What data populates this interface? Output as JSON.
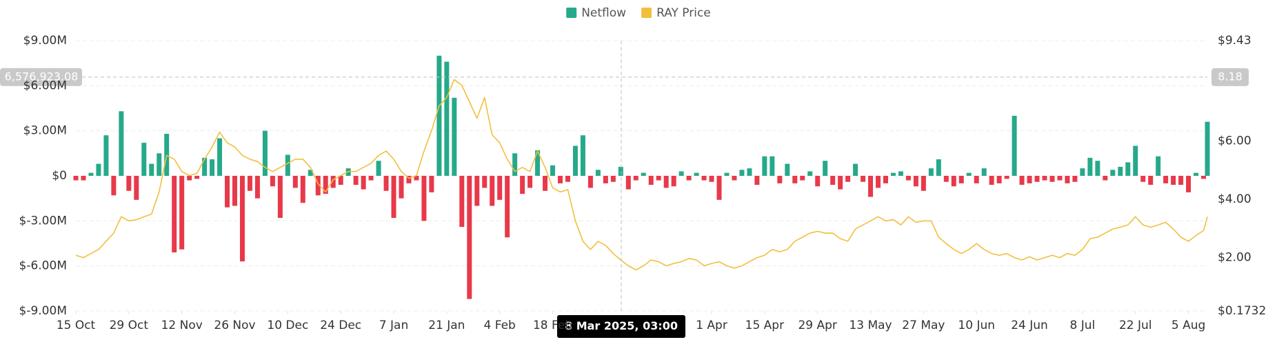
{
  "chart_data": {
    "type": "bar_line",
    "legend": "top",
    "grid": true,
    "x": [
      0,
      2,
      4,
      6,
      8,
      10,
      12,
      14,
      16,
      18,
      20,
      22,
      24,
      26,
      28,
      30,
      32,
      34,
      36,
      38,
      40,
      42,
      44,
      46,
      48,
      50,
      52,
      54,
      56,
      58,
      60,
      62,
      64,
      66,
      68,
      70,
      72,
      74,
      76,
      78,
      80,
      82,
      84,
      86,
      88,
      90,
      92,
      94,
      96,
      98,
      100,
      102,
      104,
      106,
      108,
      110,
      112,
      114,
      116,
      118,
      120,
      122,
      124,
      126,
      128,
      130,
      132,
      134,
      136,
      138,
      140,
      142,
      144,
      146,
      148,
      150,
      152,
      154,
      156,
      158,
      160,
      162,
      164,
      166,
      168,
      170,
      172,
      174,
      176,
      178,
      180,
      182,
      184,
      186,
      188,
      190,
      192,
      194,
      196,
      198,
      200,
      202,
      204,
      206,
      208,
      210,
      212,
      214,
      216,
      218,
      220,
      222,
      224,
      226,
      228,
      230,
      232,
      234,
      236,
      238,
      240,
      242,
      244,
      246,
      248,
      250,
      252,
      254,
      256,
      258,
      260,
      262,
      264,
      266,
      268,
      270,
      272,
      274,
      276,
      278,
      280,
      282,
      284,
      286,
      288,
      290,
      292,
      294,
      296,
      298,
      299
    ],
    "xlim": [
      0,
      299
    ],
    "xticks": [
      {
        "value": 0,
        "label": "15 Oct"
      },
      {
        "value": 14,
        "label": "29 Oct"
      },
      {
        "value": 28,
        "label": "12 Nov"
      },
      {
        "value": 42,
        "label": "26 Nov"
      },
      {
        "value": 56,
        "label": "10 Dec"
      },
      {
        "value": 70,
        "label": "24 Dec"
      },
      {
        "value": 84,
        "label": "7 Jan"
      },
      {
        "value": 98,
        "label": "21 Jan"
      },
      {
        "value": 112,
        "label": "4 Feb"
      },
      {
        "value": 126,
        "label": "18 Feb"
      },
      {
        "value": 168,
        "label": "1 Apr"
      },
      {
        "value": 182,
        "label": "15 Apr"
      },
      {
        "value": 196,
        "label": "29 Apr"
      },
      {
        "value": 210,
        "label": "13 May"
      },
      {
        "value": 224,
        "label": "27 May"
      },
      {
        "value": 238,
        "label": "10 Jun"
      },
      {
        "value": 252,
        "label": "24 Jun"
      },
      {
        "value": 266,
        "label": "8 Jul"
      },
      {
        "value": 280,
        "label": "22 Jul"
      },
      {
        "value": 294,
        "label": "5 Aug"
      }
    ],
    "ylim": [
      -9000000,
      9000000
    ],
    "yticks": [
      {
        "value": 9000000,
        "label": "$9.00M"
      },
      {
        "value": 6000000,
        "label": "$6.00M"
      },
      {
        "value": 3000000,
        "label": "$3.00M"
      },
      {
        "value": 0,
        "label": "$0"
      },
      {
        "value": -3000000,
        "label": "$-3.00M"
      },
      {
        "value": -6000000,
        "label": "$-6.00M"
      },
      {
        "value": -9000000,
        "label": "$-9.00M"
      }
    ],
    "y2lim": [
      0.1732,
      9.43
    ],
    "y2ticks": [
      {
        "value": 9.43,
        "label": "$9.43"
      },
      {
        "value": 6,
        "label": "$6.00"
      },
      {
        "value": 4,
        "label": "$4.00"
      },
      {
        "value": 2,
        "label": "$2.00"
      },
      {
        "value": 0.1732,
        "label": "$0.1732"
      }
    ],
    "series": [
      {
        "name": "Netflow",
        "color": "#26a98a",
        "negative_color": "#e8394a",
        "type": "bar",
        "values": [
          -300000,
          -300000,
          200000,
          800000,
          2700000,
          -1300000,
          4300000,
          -1000000,
          -1600000,
          2200000,
          800000,
          1500000,
          2800000,
          -5100000,
          -4900000,
          -300000,
          -200000,
          1200000,
          1100000,
          2500000,
          -2100000,
          -2000000,
          -5700000,
          -1000000,
          -1500000,
          3000000,
          -700000,
          -2800000,
          1400000,
          -800000,
          -1800000,
          400000,
          -1300000,
          -1200000,
          -800000,
          -600000,
          500000,
          -600000,
          -900000,
          -300000,
          1000000,
          -1000000,
          -2800000,
          -1500000,
          -500000,
          -300000,
          -3000000,
          -1100000,
          8000000,
          7600000,
          5200000,
          -3400000,
          -8200000,
          -2000000,
          -800000,
          -2000000,
          -1600000,
          -4100000,
          1500000,
          -1200000,
          -800000,
          1700000,
          -1000000,
          700000,
          -500000,
          -400000,
          2000000,
          2700000,
          -800000,
          400000,
          -500000,
          -400000,
          600000,
          -900000,
          -300000,
          200000,
          -600000,
          -300000,
          -800000,
          -700000,
          300000,
          -300000,
          200000,
          -300000,
          -400000,
          -1600000,
          200000,
          -300000,
          400000,
          500000,
          -600000,
          1300000,
          1300000,
          -500000,
          800000,
          -500000,
          -300000,
          300000,
          -700000,
          1000000,
          -600000,
          -900000,
          -400000,
          800000,
          -400000,
          -1400000,
          -800000,
          -500000,
          200000,
          300000,
          -300000,
          -700000,
          -1000000,
          500000,
          1100000,
          -400000,
          -700000,
          -500000,
          200000,
          -500000,
          500000,
          -600000,
          -500000,
          -200000,
          4000000,
          -600000,
          -500000,
          -400000,
          -300000,
          -400000,
          -300000,
          -500000,
          -400000,
          500000,
          1200000,
          1000000,
          -300000,
          400000,
          600000,
          900000,
          2000000,
          -400000,
          -600000,
          1300000,
          -500000,
          -600000,
          -600000,
          -1100000,
          200000,
          -200000,
          3600000
        ]
      },
      {
        "name": "RAY Price",
        "color": "#f2bf3c",
        "type": "line",
        "axis": "y2",
        "values": [
          2.08,
          2.0,
          2.14,
          2.28,
          2.56,
          2.84,
          3.4,
          3.26,
          3.3,
          3.4,
          3.49,
          4.25,
          5.5,
          5.37,
          4.95,
          4.81,
          4.89,
          5.37,
          5.79,
          6.3,
          5.93,
          5.79,
          5.5,
          5.37,
          5.29,
          5.09,
          4.95,
          5.09,
          5.23,
          5.37,
          5.37,
          5.09,
          4.53,
          4.25,
          4.67,
          4.81,
          4.95,
          4.95,
          5.09,
          5.23,
          5.5,
          5.65,
          5.37,
          4.95,
          4.72,
          4.81,
          5.65,
          6.35,
          7.2,
          7.48,
          8.1,
          7.9,
          7.34,
          6.77,
          7.48,
          6.21,
          5.93,
          5.37,
          4.95,
          5.09,
          4.95,
          5.65,
          5.09,
          4.39,
          4.25,
          4.33,
          3.26,
          2.56,
          2.28,
          2.56,
          2.42,
          2.14,
          1.92,
          1.72,
          1.58,
          1.72,
          1.92,
          1.86,
          1.72,
          1.8,
          1.86,
          1.97,
          1.92,
          1.72,
          1.8,
          1.86,
          1.72,
          1.64,
          1.72,
          1.86,
          2.0,
          2.08,
          2.28,
          2.2,
          2.28,
          2.56,
          2.7,
          2.84,
          2.9,
          2.84,
          2.84,
          2.65,
          2.56,
          2.98,
          3.12,
          3.26,
          3.4,
          3.26,
          3.3,
          3.12,
          3.4,
          3.21,
          3.26,
          3.26,
          2.7,
          2.48,
          2.28,
          2.14,
          2.28,
          2.48,
          2.28,
          2.14,
          2.08,
          2.14,
          2.0,
          1.92,
          2.03,
          1.92,
          2.0,
          2.08,
          2.0,
          2.14,
          2.08,
          2.28,
          2.65,
          2.7,
          2.84,
          2.98,
          3.04,
          3.12,
          3.4,
          3.12,
          3.04,
          3.12,
          3.21,
          2.98,
          2.7,
          2.56,
          2.76,
          2.93,
          3.4
        ]
      }
    ],
    "crosshair": {
      "x": {
        "value": 144.125,
        "label": "8 Mar 2025, 03:00"
      },
      "y": {
        "value": 6576923.08,
        "label": "6,576,923.08"
      },
      "y2": {
        "value": 8.18,
        "label": "8.18"
      }
    }
  }
}
